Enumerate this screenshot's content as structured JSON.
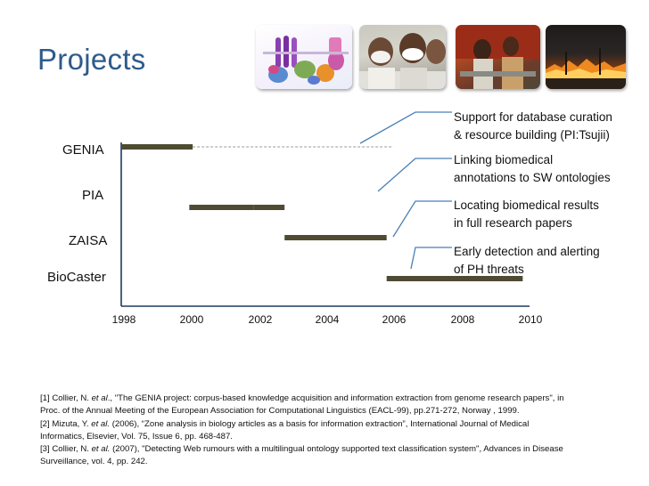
{
  "title": "Projects",
  "photos": [
    {
      "name": "protein-structure-illustration"
    },
    {
      "name": "people-wearing-masks"
    },
    {
      "name": "hospital-stretcher-scene"
    },
    {
      "name": "wildfire-at-night"
    }
  ],
  "chart_data": {
    "type": "gantt",
    "x_axis_years": [
      "1998",
      "2000",
      "2002",
      "2004",
      "2006",
      "2008",
      "2010"
    ],
    "xlim": [
      1998,
      2010
    ],
    "projects": [
      {
        "name": "GENIA",
        "start": 1998.0,
        "end": 2000.1,
        "dashed_extension_to": 2006.0
      },
      {
        "name": "PIA",
        "start": 2001.9,
        "end": 2002.8
      },
      {
        "name": "ZAISA",
        "start": 2002.8,
        "end": 2005.8
      },
      {
        "name": "BioCaster",
        "start": 2005.8,
        "end": 2009.8
      }
    ],
    "extra_bar": {
      "start": 2000.0,
      "end": 2001.9,
      "row": "PIA"
    },
    "callouts": [
      {
        "line1": "Support for database curation",
        "line2": "& resource building (PI:Tsujii)"
      },
      {
        "line1": "Linking biomedical",
        "line2": "annotations to SW ontologies"
      },
      {
        "line1": "Locating biomedical results",
        "line2": "in full research papers"
      },
      {
        "line1": "Early detection and alerting",
        "line2": "of PH threats"
      }
    ]
  },
  "references": {
    "r1_part1": "[1] Collier, N.",
    "r1_etal": "et al",
    "r1_part2": "., \"The GENIA project: corpus-based knowledge acquisition and information extraction from genome research papers\", in",
    "r1_line2": "Proc. of the Annual Meeting of the European Association for Computational Linguistics (EACL-99), pp.271-272, Norway , 1999.",
    "r2_part1": "[2] Mizuta, Y.",
    "r2_etal": "et al.",
    "r2_part2": "(2006), “Zone analysis in biology articles as a basis for information extraction”, International Journal of Medical",
    "r2_line2": "Informatics, Elsevier, Vol. 75, Issue 6, pp. 468-487.",
    "r3_part1": "[3] Collier, N.",
    "r3_etal": "et al.",
    "r3_part2": "(2007), \"Detecting Web rumours with a multilingual ontology supported text classification system\", Advances in Disease",
    "r3_line2": "Surveillance, vol. 4, pp. 242."
  },
  "colors": {
    "title": "#2e5b8a",
    "bar": "#4f4b33",
    "axis": "#1e3a5f",
    "callout_border": "#4a7fb5",
    "dashed": "#9a9a9a"
  }
}
